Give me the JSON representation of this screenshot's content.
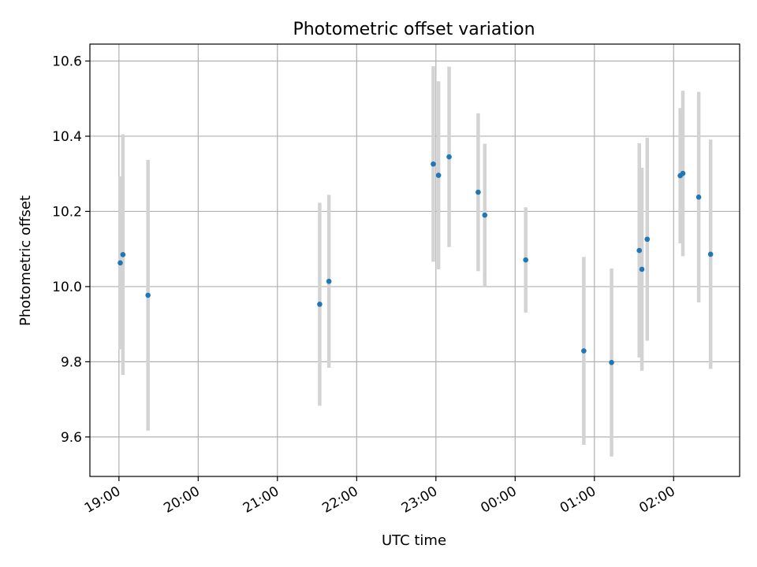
{
  "chart_data": {
    "type": "scatter",
    "title": "Photometric offset variation",
    "xlabel": "UTC time",
    "ylabel": "Photometric offset",
    "x_ticks": [
      "19:00",
      "20:00",
      "21:00",
      "22:00",
      "23:00",
      "00:00",
      "01:00",
      "02:00"
    ],
    "y_ticks": [
      "9.6",
      "9.8",
      "10.0",
      "10.2",
      "10.4",
      "10.6"
    ],
    "xlim": [
      "18:38",
      "02:50"
    ],
    "ylim": [
      9.495,
      10.645
    ],
    "grid": true,
    "colors": {
      "point": "#1f77b4",
      "errorbar": "#d3d3d3",
      "grid": "#b0b0b0"
    },
    "points": [
      {
        "x": "19:01",
        "y": 10.063,
        "err": 0.23
      },
      {
        "x": "19:03",
        "y": 10.085,
        "err": 0.32
      },
      {
        "x": "19:22",
        "y": 9.977,
        "err": 0.36
      },
      {
        "x": "21:32",
        "y": 9.953,
        "err": 0.27
      },
      {
        "x": "21:39",
        "y": 10.014,
        "err": 0.23
      },
      {
        "x": "22:58",
        "y": 10.326,
        "err": 0.26
      },
      {
        "x": "23:02",
        "y": 10.296,
        "err": 0.25
      },
      {
        "x": "23:10",
        "y": 10.345,
        "err": 0.24
      },
      {
        "x": "23:32",
        "y": 10.251,
        "err": 0.21
      },
      {
        "x": "23:37",
        "y": 10.19,
        "err": 0.19
      },
      {
        "x": "00:08",
        "y": 10.071,
        "err": 0.14
      },
      {
        "x": "00:52",
        "y": 9.829,
        "err": 0.25
      },
      {
        "x": "01:13",
        "y": 9.798,
        "err": 0.25
      },
      {
        "x": "01:34",
        "y": 10.096,
        "err": 0.285
      },
      {
        "x": "01:36",
        "y": 10.046,
        "err": 0.27
      },
      {
        "x": "01:40",
        "y": 10.126,
        "err": 0.27
      },
      {
        "x": "02:05",
        "y": 10.295,
        "err": 0.18
      },
      {
        "x": "02:07",
        "y": 10.301,
        "err": 0.22
      },
      {
        "x": "02:19",
        "y": 10.238,
        "err": 0.28
      },
      {
        "x": "02:28",
        "y": 10.086,
        "err": 0.305
      }
    ]
  }
}
